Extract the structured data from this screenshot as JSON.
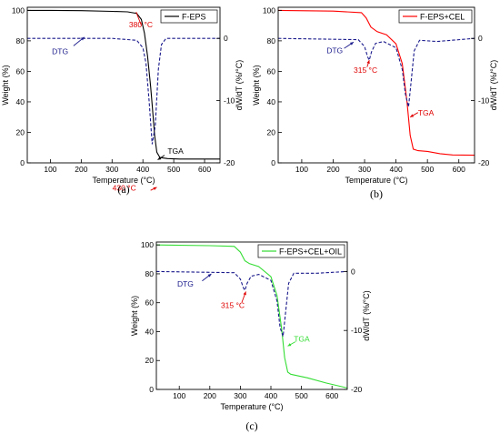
{
  "chart_data": [
    {
      "type": "line",
      "panel_label": "(a)",
      "xlabel": "Temperature (°C)",
      "ylabel": "Weight (%)",
      "y2label": "dW/dT (%/°C)",
      "xlim": [
        25,
        650
      ],
      "ylim": [
        0,
        102
      ],
      "y2lim": [
        -20,
        5
      ],
      "xticks": [
        100,
        200,
        300,
        400,
        500,
        600
      ],
      "yticks": [
        0,
        20,
        40,
        60,
        80,
        100
      ],
      "y2ticks": [
        0,
        -10,
        -20
      ],
      "legend": {
        "label": "F-EPS",
        "color": "#000000",
        "position": "top-right"
      },
      "series": [
        {
          "name": "TGA",
          "axis": "left",
          "color": "#000000",
          "dash": false,
          "x": [
            25,
            100,
            200,
            300,
            350,
            380,
            395,
            405,
            415,
            425,
            430,
            438,
            445,
            455,
            480,
            520,
            650
          ],
          "y": [
            100,
            100,
            99.8,
            99.3,
            99,
            98,
            94,
            85,
            70,
            50,
            38,
            18,
            7,
            3.5,
            2.8,
            2.5,
            2.5
          ]
        },
        {
          "name": "DTG",
          "axis": "right",
          "color": "#1a1a8c",
          "dash": true,
          "x": [
            25,
            300,
            380,
            400,
            410,
            420,
            430,
            440,
            450,
            460,
            475,
            650
          ],
          "y": [
            0,
            0,
            -0.3,
            -1.5,
            -4,
            -10,
            -17,
            -14,
            -5,
            -1,
            0,
            0
          ]
        }
      ],
      "annotations": [
        {
          "text": "380 °C",
          "color": "#e00000"
        },
        {
          "text": "DTG",
          "color": "#1a1a8c"
        },
        {
          "text": "430 °C",
          "color": "#e00000"
        },
        {
          "text": "TGA",
          "color": "#000000"
        }
      ]
    },
    {
      "type": "line",
      "panel_label": "(b)",
      "xlabel": "Temperature (°C)",
      "ylabel": "Weight (%)",
      "y2label": "dW/dT (%/°C)",
      "xlim": [
        25,
        650
      ],
      "ylim": [
        0,
        102
      ],
      "y2lim": [
        -20,
        5
      ],
      "xticks": [
        100,
        200,
        300,
        400,
        500,
        600
      ],
      "yticks": [
        0,
        20,
        40,
        60,
        80,
        100
      ],
      "y2ticks": [
        0,
        -10,
        -20
      ],
      "legend": {
        "label": "F-EPS+CEL",
        "color": "#ff0000",
        "position": "top-right"
      },
      "series": [
        {
          "name": "TGA",
          "axis": "left",
          "color": "#ff0000",
          "dash": false,
          "x": [
            25,
            200,
            290,
            305,
            320,
            340,
            370,
            400,
            420,
            435,
            445,
            455,
            470,
            500,
            540,
            580,
            650
          ],
          "y": [
            100,
            99.5,
            98.5,
            95,
            89,
            86,
            84,
            78,
            65,
            40,
            18,
            9,
            8,
            7.5,
            6,
            5.2,
            5
          ]
        },
        {
          "name": "DTG",
          "axis": "right",
          "color": "#1a1a8c",
          "dash": true,
          "x": [
            25,
            280,
            300,
            310,
            315,
            322,
            335,
            360,
            400,
            420,
            430,
            440,
            448,
            458,
            475,
            530,
            650
          ],
          "y": [
            0,
            -0.2,
            -1.3,
            -3,
            -3.5,
            -2.2,
            -0.8,
            -0.5,
            -1.5,
            -5,
            -9,
            -11,
            -7,
            -2,
            -0.3,
            -0.5,
            0
          ]
        }
      ],
      "annotations": [
        {
          "text": "DTG",
          "color": "#1a1a8c"
        },
        {
          "text": "315 °C",
          "color": "#e00000"
        },
        {
          "text": "TGA",
          "color": "#e00000"
        }
      ]
    },
    {
      "type": "line",
      "panel_label": "(c)",
      "xlabel": "Temperature (°C)",
      "ylabel": "Weight (%)",
      "y2label": "dW/dT (%/°C)",
      "xlim": [
        25,
        650
      ],
      "ylim": [
        0,
        102
      ],
      "y2lim": [
        -20,
        5
      ],
      "xticks": [
        100,
        200,
        300,
        400,
        500,
        600
      ],
      "yticks": [
        0,
        20,
        40,
        60,
        80,
        100
      ],
      "y2ticks": [
        0,
        -10,
        -20
      ],
      "legend": {
        "label": "F-EPS+CEL+OIL",
        "color": "#33dd33",
        "position": "top-right"
      },
      "series": [
        {
          "name": "TGA",
          "axis": "left",
          "color": "#33dd33",
          "dash": false,
          "x": [
            25,
            200,
            280,
            300,
            315,
            330,
            360,
            400,
            420,
            435,
            445,
            455,
            465,
            480,
            520,
            580,
            650
          ],
          "y": [
            100,
            99.5,
            99,
            95,
            89,
            87,
            85,
            78,
            65,
            42,
            22,
            12,
            10.5,
            9.8,
            8,
            4.5,
            1
          ]
        },
        {
          "name": "DTG",
          "axis": "right",
          "color": "#1a1a8c",
          "dash": true,
          "x": [
            25,
            280,
            300,
            310,
            315,
            322,
            335,
            360,
            400,
            420,
            430,
            440,
            448,
            458,
            475,
            550,
            650
          ],
          "y": [
            0,
            -0.2,
            -1.3,
            -2.8,
            -3.2,
            -2,
            -0.8,
            -0.5,
            -1.5,
            -5,
            -9.5,
            -11,
            -7,
            -2,
            -0.3,
            -0.3,
            0
          ]
        }
      ],
      "annotations": [
        {
          "text": "DTG",
          "color": "#1a1a8c"
        },
        {
          "text": "315 °C",
          "color": "#e00000"
        },
        {
          "text": "TGA",
          "color": "#33dd33"
        }
      ]
    }
  ]
}
